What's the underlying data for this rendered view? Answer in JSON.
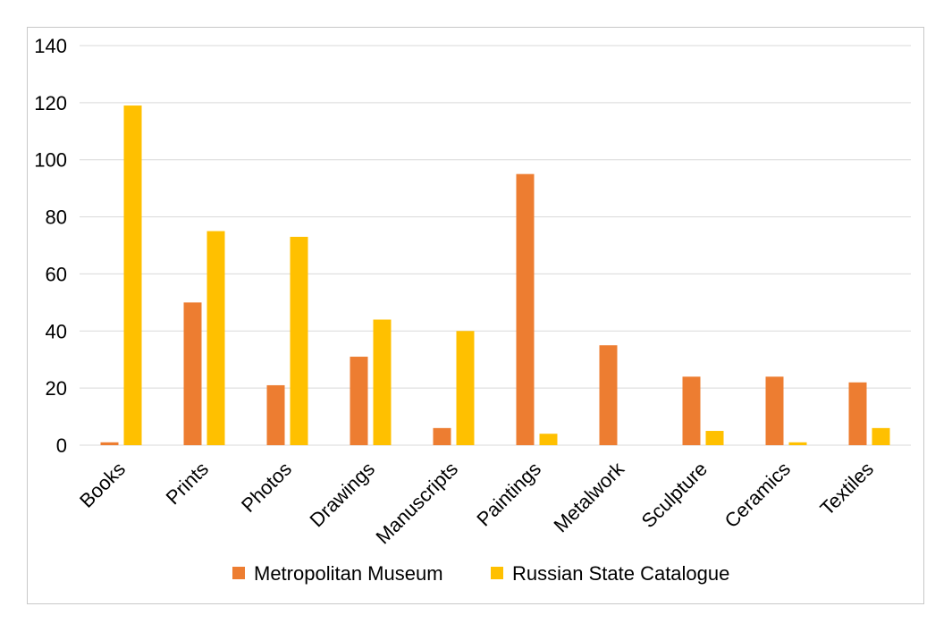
{
  "chart_data": {
    "type": "bar",
    "categories": [
      "Books",
      "Prints",
      "Photos",
      "Drawings",
      "Manuscripts",
      "Paintings",
      "Metalwork",
      "Sculpture",
      "Ceramics",
      "Textiles"
    ],
    "series": [
      {
        "name": "Metropolitan Museum",
        "color": "#ED7D31",
        "values": [
          1,
          50,
          21,
          31,
          6,
          95,
          35,
          24,
          24,
          22
        ]
      },
      {
        "name": "Russian State Catalogue",
        "color": "#FFC000",
        "values": [
          119,
          75,
          73,
          44,
          40,
          4,
          0,
          5,
          1,
          6
        ]
      }
    ],
    "yticks": [
      "0",
      "20",
      "40",
      "60",
      "80",
      "100",
      "120",
      "140"
    ],
    "ylim": [
      0,
      140
    ],
    "grid": true,
    "legend": "bottom",
    "xlabel": "",
    "ylabel": "",
    "title": ""
  }
}
